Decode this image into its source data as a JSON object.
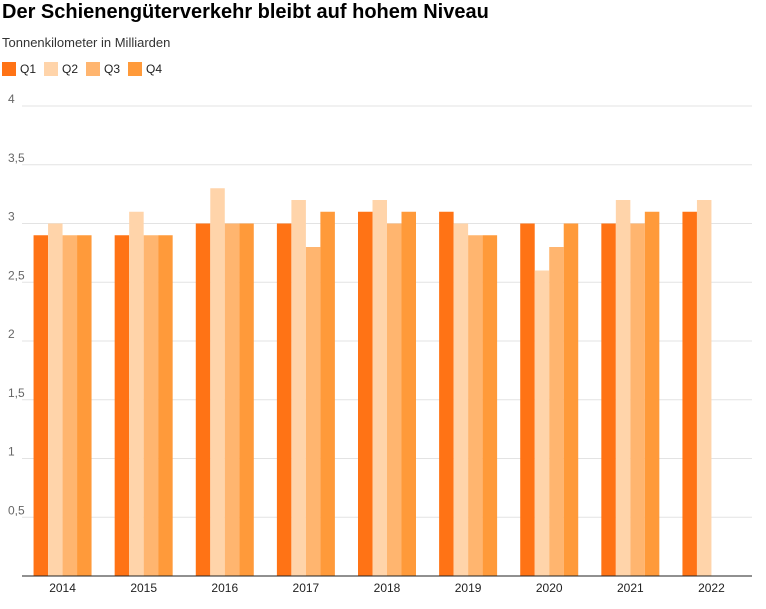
{
  "chart_data": {
    "type": "bar",
    "title": "Der Schienengüterverkehr bleibt auf hohem Niveau",
    "subtitle": "Tonnenkilometer in Milliarden",
    "categories": [
      "2014",
      "2015",
      "2016",
      "2017",
      "2018",
      "2019",
      "2020",
      "2021",
      "2022"
    ],
    "series": [
      {
        "name": "Q1",
        "color": "#ff7315",
        "values": [
          2.9,
          2.9,
          3.0,
          3.0,
          3.1,
          3.1,
          3.0,
          3.0,
          3.1
        ]
      },
      {
        "name": "Q2",
        "color": "#ffd4aa",
        "values": [
          3.0,
          3.1,
          3.3,
          3.2,
          3.2,
          3.0,
          2.6,
          3.2,
          3.2
        ]
      },
      {
        "name": "Q3",
        "color": "#ffb56f",
        "values": [
          2.9,
          2.9,
          3.0,
          2.8,
          3.0,
          2.9,
          2.8,
          3.0,
          null
        ]
      },
      {
        "name": "Q4",
        "color": "#ff9a3a",
        "values": [
          2.9,
          2.9,
          3.0,
          3.1,
          3.1,
          2.9,
          3.0,
          3.1,
          null
        ]
      }
    ],
    "yticks": [
      "0,5",
      "1",
      "1,5",
      "2",
      "2,5",
      "3",
      "3,5",
      "4"
    ],
    "ytick_values": [
      0.5,
      1,
      1.5,
      2,
      2.5,
      3,
      3.5,
      4
    ],
    "ylim": [
      0,
      4
    ],
    "grid": true,
    "legend": "top-left",
    "xlabel": "",
    "ylabel": ""
  }
}
